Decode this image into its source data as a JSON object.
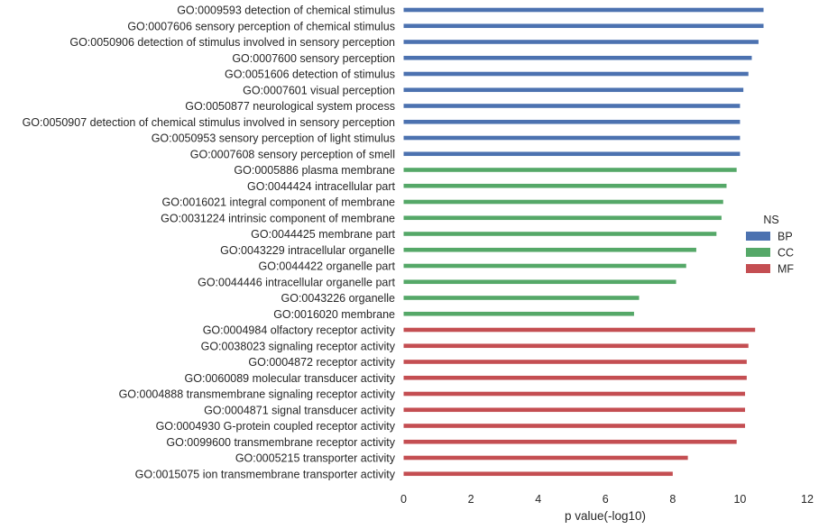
{
  "chart_data": {
    "type": "bar",
    "orientation": "horizontal",
    "xlabel": "p value(-log10)",
    "ylabel": "",
    "xlim": [
      0,
      12
    ],
    "xticks": [
      0,
      2,
      4,
      6,
      8,
      10,
      12
    ],
    "grid": false,
    "legend": {
      "title": "NS",
      "position": "right",
      "entries": [
        {
          "name": "BP",
          "color": "#4c72b0"
        },
        {
          "name": "CC",
          "color": "#55a868"
        },
        {
          "name": "MF",
          "color": "#c44e52"
        }
      ]
    },
    "bars": [
      {
        "label": "GO:0009593 detection of chemical stimulus",
        "value": 10.7,
        "group": "BP"
      },
      {
        "label": "GO:0007606 sensory perception of chemical stimulus",
        "value": 10.7,
        "group": "BP"
      },
      {
        "label": "GO:0050906 detection of stimulus involved in sensory perception",
        "value": 10.55,
        "group": "BP"
      },
      {
        "label": "GO:0007600 sensory perception",
        "value": 10.35,
        "group": "BP"
      },
      {
        "label": "GO:0051606 detection of stimulus",
        "value": 10.25,
        "group": "BP"
      },
      {
        "label": "GO:0007601 visual perception",
        "value": 10.1,
        "group": "BP"
      },
      {
        "label": "GO:0050877 neurological system process",
        "value": 10.0,
        "group": "BP"
      },
      {
        "label": "GO:0050907 detection of chemical stimulus involved in sensory perception",
        "value": 10.0,
        "group": "BP"
      },
      {
        "label": "GO:0050953 sensory perception of light stimulus",
        "value": 10.0,
        "group": "BP"
      },
      {
        "label": "GO:0007608 sensory perception of smell",
        "value": 10.0,
        "group": "BP"
      },
      {
        "label": "GO:0005886 plasma membrane",
        "value": 9.9,
        "group": "CC"
      },
      {
        "label": "GO:0044424 intracellular part",
        "value": 9.6,
        "group": "CC"
      },
      {
        "label": "GO:0016021 integral component of membrane",
        "value": 9.5,
        "group": "CC"
      },
      {
        "label": "GO:0031224 intrinsic component of membrane",
        "value": 9.45,
        "group": "CC"
      },
      {
        "label": "GO:0044425 membrane part",
        "value": 9.3,
        "group": "CC"
      },
      {
        "label": "GO:0043229 intracellular organelle",
        "value": 8.7,
        "group": "CC"
      },
      {
        "label": "GO:0044422 organelle part",
        "value": 8.4,
        "group": "CC"
      },
      {
        "label": "GO:0044446 intracellular organelle part",
        "value": 8.1,
        "group": "CC"
      },
      {
        "label": "GO:0043226 organelle",
        "value": 7.0,
        "group": "CC"
      },
      {
        "label": "GO:0016020 membrane",
        "value": 6.85,
        "group": "CC"
      },
      {
        "label": "GO:0004984 olfactory receptor activity",
        "value": 10.45,
        "group": "MF"
      },
      {
        "label": "GO:0038023 signaling receptor activity",
        "value": 10.25,
        "group": "MF"
      },
      {
        "label": "GO:0004872 receptor activity",
        "value": 10.2,
        "group": "MF"
      },
      {
        "label": "GO:0060089 molecular transducer activity",
        "value": 10.2,
        "group": "MF"
      },
      {
        "label": "GO:0004888 transmembrane signaling receptor activity",
        "value": 10.15,
        "group": "MF"
      },
      {
        "label": "GO:0004871 signal transducer activity",
        "value": 10.15,
        "group": "MF"
      },
      {
        "label": "GO:0004930 G-protein coupled receptor activity",
        "value": 10.15,
        "group": "MF"
      },
      {
        "label": "GO:0099600 transmembrane receptor activity",
        "value": 9.9,
        "group": "MF"
      },
      {
        "label": "GO:0005215 transporter activity",
        "value": 8.45,
        "group": "MF"
      },
      {
        "label": "GO:0015075 ion transmembrane transporter activity",
        "value": 8.0,
        "group": "MF"
      }
    ]
  }
}
